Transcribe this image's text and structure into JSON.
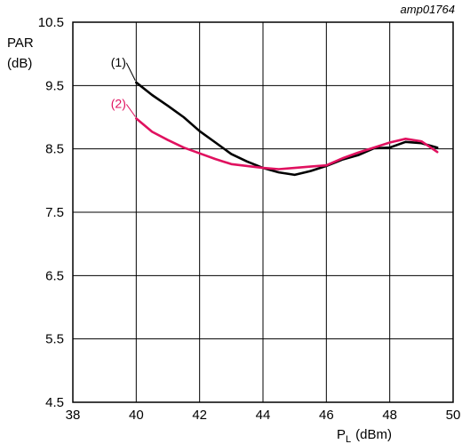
{
  "chart_data": {
    "type": "line",
    "figure_id": "amp01764",
    "ylabel_line1": "PAR",
    "ylabel_line2": "(dB)",
    "xlabel_main": "P",
    "xlabel_sub": "L",
    "xlabel_unit": "(dBm)",
    "xlim": [
      38,
      50
    ],
    "ylim": [
      4.5,
      10.5
    ],
    "xticks": [
      "38",
      "40",
      "42",
      "44",
      "46",
      "48",
      "50"
    ],
    "yticks": [
      "10.5",
      "9.5",
      "8.5",
      "7.5",
      "6.5",
      "5.5",
      "4.5"
    ],
    "grid": true,
    "series": [
      {
        "name": "(1)",
        "color": "#000000",
        "x": [
          40.0,
          40.5,
          41.0,
          41.5,
          42.0,
          42.5,
          43.0,
          43.5,
          44.0,
          44.5,
          45.0,
          45.5,
          46.0,
          46.5,
          47.0,
          47.5,
          48.0,
          48.5,
          49.0,
          49.5
        ],
        "y": [
          9.55,
          9.35,
          9.18,
          9.0,
          8.78,
          8.6,
          8.42,
          8.3,
          8.2,
          8.13,
          8.09,
          8.15,
          8.23,
          8.33,
          8.4,
          8.51,
          8.52,
          8.61,
          8.59,
          8.52
        ]
      },
      {
        "name": "(2)",
        "color": "#e0115f",
        "x": [
          40.0,
          40.5,
          41.0,
          41.5,
          42.0,
          42.5,
          43.0,
          43.5,
          44.0,
          44.5,
          45.0,
          45.5,
          46.0,
          46.5,
          47.0,
          47.5,
          48.0,
          48.5,
          49.0,
          49.5
        ],
        "y": [
          8.98,
          8.77,
          8.64,
          8.52,
          8.43,
          8.34,
          8.26,
          8.23,
          8.2,
          8.18,
          8.2,
          8.22,
          8.24,
          8.35,
          8.44,
          8.52,
          8.6,
          8.66,
          8.62,
          8.45
        ]
      }
    ]
  }
}
